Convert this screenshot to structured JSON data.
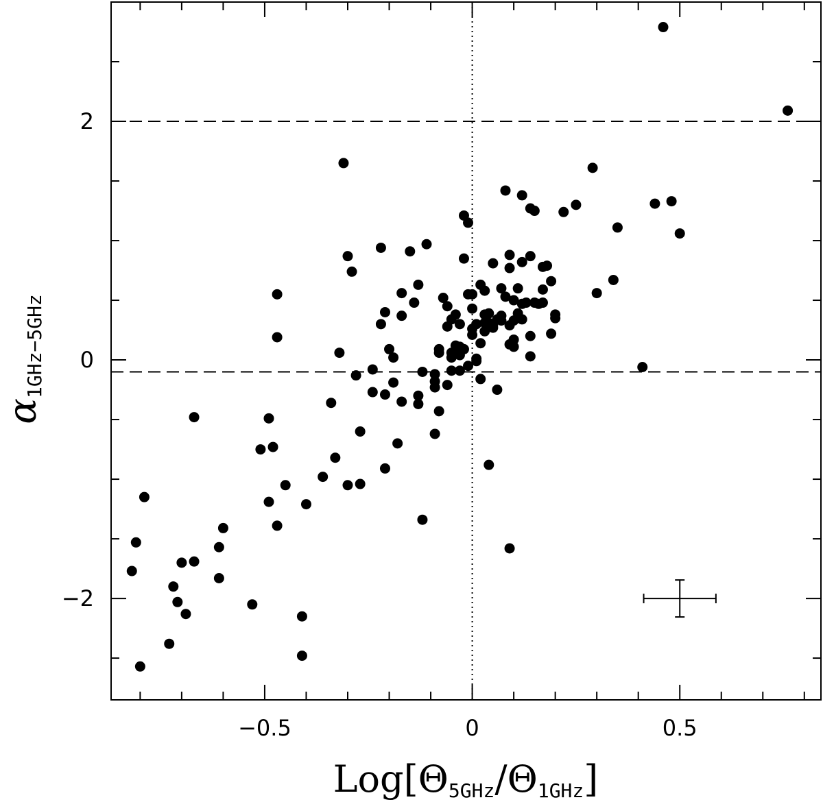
{
  "chart_data": {
    "type": "scatter",
    "xlabel": {
      "main": "Log[",
      "sym1": "Θ",
      "sub1": "5GHz",
      "slash": "/",
      "sym2": "Θ",
      "sub2": "1GHz",
      "close": "]"
    },
    "ylabel": {
      "sym": "α",
      "sub": "1GHz−5GHz"
    },
    "xlim": [
      -0.87,
      0.84
    ],
    "ylim": [
      -2.85,
      3.0
    ],
    "x_ticks": [
      {
        "value": -0.5,
        "label": "−0.5"
      },
      {
        "value": 0,
        "label": "0"
      },
      {
        "value": 0.5,
        "label": "0.5"
      }
    ],
    "y_ticks": [
      {
        "value": -2,
        "label": "−2"
      },
      {
        "value": 0,
        "label": "0"
      },
      {
        "value": 2,
        "label": "2"
      }
    ],
    "x_minor_step": 0.1,
    "y_minor_step": 0.5,
    "grid": false,
    "reference_lines": [
      {
        "orientation": "horizontal",
        "value": 2.0,
        "style": "dashed"
      },
      {
        "orientation": "horizontal",
        "value": -0.1,
        "style": "dashed"
      },
      {
        "orientation": "vertical",
        "value": 0.0,
        "style": "dotted"
      }
    ],
    "error_bar": {
      "x": 0.5,
      "y": -2.0,
      "x_err": 0.087,
      "y_err": 0.155
    },
    "points": [
      [
        -0.8,
        -2.57
      ],
      [
        -0.79,
        -1.15
      ],
      [
        -0.81,
        -1.53
      ],
      [
        -0.82,
        -1.77
      ],
      [
        -0.7,
        -1.7
      ],
      [
        -0.67,
        -1.69
      ],
      [
        -0.72,
        -1.9
      ],
      [
        -0.71,
        -2.03
      ],
      [
        -0.69,
        -2.13
      ],
      [
        -0.73,
        -2.38
      ],
      [
        -0.67,
        -0.48
      ],
      [
        -0.6,
        -1.41
      ],
      [
        -0.61,
        -1.57
      ],
      [
        -0.61,
        -1.83
      ],
      [
        -0.53,
        -2.05
      ],
      [
        -0.51,
        -0.75
      ],
      [
        -0.49,
        -0.49
      ],
      [
        -0.48,
        -0.73
      ],
      [
        -0.49,
        -1.19
      ],
      [
        -0.47,
        -1.39
      ],
      [
        -0.45,
        -1.05
      ],
      [
        -0.47,
        0.55
      ],
      [
        -0.47,
        0.19
      ],
      [
        -0.41,
        -2.15
      ],
      [
        -0.41,
        -2.48
      ],
      [
        -0.4,
        -1.21
      ],
      [
        -0.34,
        -0.36
      ],
      [
        -0.33,
        -0.82
      ],
      [
        -0.36,
        -0.98
      ],
      [
        -0.32,
        0.06
      ],
      [
        -0.31,
        1.65
      ],
      [
        -0.3,
        0.87
      ],
      [
        -0.29,
        0.74
      ],
      [
        -0.28,
        -0.13
      ],
      [
        -0.3,
        -1.05
      ],
      [
        -0.27,
        -0.6
      ],
      [
        -0.27,
        -1.04
      ],
      [
        -0.24,
        -0.08
      ],
      [
        -0.24,
        -0.27
      ],
      [
        -0.22,
        0.3
      ],
      [
        -0.22,
        0.94
      ],
      [
        -0.21,
        0.4
      ],
      [
        -0.21,
        -0.29
      ],
      [
        -0.2,
        0.09
      ],
      [
        -0.19,
        0.02
      ],
      [
        -0.19,
        -0.19
      ],
      [
        -0.18,
        -0.7
      ],
      [
        -0.21,
        -0.91
      ],
      [
        -0.17,
        0.37
      ],
      [
        -0.17,
        0.56
      ],
      [
        -0.17,
        -0.35
      ],
      [
        -0.15,
        0.91
      ],
      [
        -0.14,
        0.48
      ],
      [
        -0.13,
        0.63
      ],
      [
        -0.13,
        -0.3
      ],
      [
        -0.13,
        -0.37
      ],
      [
        -0.12,
        -0.1
      ],
      [
        -0.12,
        -1.34
      ],
      [
        -0.11,
        0.97
      ],
      [
        -0.09,
        -0.12
      ],
      [
        -0.09,
        -0.18
      ],
      [
        -0.09,
        -0.23
      ],
      [
        -0.09,
        -0.62
      ],
      [
        -0.08,
        0.06
      ],
      [
        -0.08,
        -0.43
      ],
      [
        -0.08,
        0.09
      ],
      [
        -0.07,
        0.52
      ],
      [
        -0.06,
        0.45
      ],
      [
        -0.06,
        0.28
      ],
      [
        -0.06,
        -0.21
      ],
      [
        -0.05,
        0.34
      ],
      [
        -0.05,
        0.02
      ],
      [
        -0.05,
        0.06
      ],
      [
        -0.05,
        -0.09
      ],
      [
        -0.04,
        0.38
      ],
      [
        -0.04,
        0.12
      ],
      [
        -0.03,
        0.11
      ],
      [
        -0.03,
        0.04
      ],
      [
        -0.03,
        0.3
      ],
      [
        -0.03,
        0.07
      ],
      [
        -0.03,
        -0.09
      ],
      [
        -0.02,
        0.09
      ],
      [
        -0.02,
        1.21
      ],
      [
        -0.02,
        0.85
      ],
      [
        -0.01,
        -0.05
      ],
      [
        -0.01,
        1.15
      ],
      [
        -0.01,
        0.55
      ],
      [
        0.0,
        0.55
      ],
      [
        0.0,
        0.43
      ],
      [
        0.0,
        0.26
      ],
      [
        0.0,
        0.21
      ],
      [
        0.01,
        0.01
      ],
      [
        0.01,
        0.3
      ],
      [
        0.01,
        -0.01
      ],
      [
        0.02,
        0.63
      ],
      [
        0.02,
        0.14
      ],
      [
        0.02,
        -0.16
      ],
      [
        0.03,
        0.58
      ],
      [
        0.03,
        0.24
      ],
      [
        0.03,
        0.31
      ],
      [
        0.03,
        0.38
      ],
      [
        0.04,
        0.39
      ],
      [
        0.04,
        0.31
      ],
      [
        0.04,
        -0.88
      ],
      [
        0.05,
        0.81
      ],
      [
        0.05,
        0.29
      ],
      [
        0.05,
        0.27
      ],
      [
        0.06,
        -0.25
      ],
      [
        0.06,
        0.34
      ],
      [
        0.07,
        0.37
      ],
      [
        0.07,
        0.6
      ],
      [
        0.07,
        0.33
      ],
      [
        0.08,
        1.42
      ],
      [
        0.08,
        0.53
      ],
      [
        0.09,
        0.13
      ],
      [
        0.09,
        0.29
      ],
      [
        0.09,
        -1.58
      ],
      [
        0.09,
        0.88
      ],
      [
        0.09,
        0.77
      ],
      [
        0.1,
        0.11
      ],
      [
        0.1,
        0.17
      ],
      [
        0.1,
        0.33
      ],
      [
        0.1,
        0.5
      ],
      [
        0.11,
        0.6
      ],
      [
        0.11,
        0.39
      ],
      [
        0.12,
        0.47
      ],
      [
        0.12,
        0.82
      ],
      [
        0.12,
        1.38
      ],
      [
        0.12,
        0.34
      ],
      [
        0.13,
        0.48
      ],
      [
        0.14,
        0.87
      ],
      [
        0.14,
        0.2
      ],
      [
        0.14,
        0.03
      ],
      [
        0.14,
        1.27
      ],
      [
        0.15,
        1.25
      ],
      [
        0.15,
        0.48
      ],
      [
        0.16,
        0.47
      ],
      [
        0.17,
        0.59
      ],
      [
        0.17,
        0.48
      ],
      [
        0.17,
        0.78
      ],
      [
        0.18,
        0.79
      ],
      [
        0.19,
        0.66
      ],
      [
        0.19,
        0.22
      ],
      [
        0.2,
        0.38
      ],
      [
        0.2,
        0.35
      ],
      [
        0.22,
        1.24
      ],
      [
        0.25,
        1.3
      ],
      [
        0.29,
        1.61
      ],
      [
        0.3,
        0.56
      ],
      [
        0.34,
        0.67
      ],
      [
        0.35,
        1.11
      ],
      [
        0.41,
        -0.06
      ],
      [
        0.44,
        1.31
      ],
      [
        0.46,
        2.79
      ],
      [
        0.48,
        1.33
      ],
      [
        0.5,
        1.06
      ],
      [
        0.76,
        2.09
      ]
    ]
  }
}
